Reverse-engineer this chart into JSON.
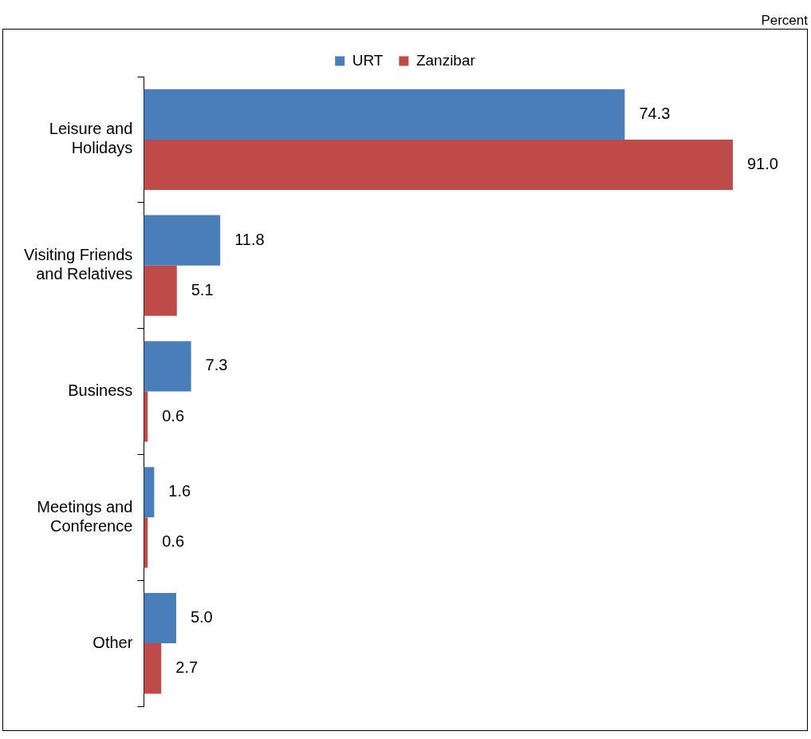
{
  "chart_data": {
    "type": "bar",
    "orientation": "horizontal",
    "categories": [
      "Leisure and Holidays",
      "Visiting Friends and Relatives",
      "Business",
      "Meetings and Conference",
      "Other"
    ],
    "series": [
      {
        "name": "URT",
        "color": "#4a7ebb",
        "values": [
          74.3,
          11.8,
          7.3,
          1.6,
          5.0
        ],
        "value_labels": [
          "74.3",
          "11.8",
          "7.3",
          "1.6",
          "5.0"
        ]
      },
      {
        "name": "Zanzibar",
        "color": "#be4b48",
        "values": [
          91.0,
          5.1,
          0.6,
          0.6,
          2.7
        ],
        "value_labels": [
          "91.0",
          "5.1",
          "0.6",
          "0.6",
          "2.7"
        ]
      }
    ],
    "legend": "top",
    "annotations": [
      "Percent"
    ]
  }
}
